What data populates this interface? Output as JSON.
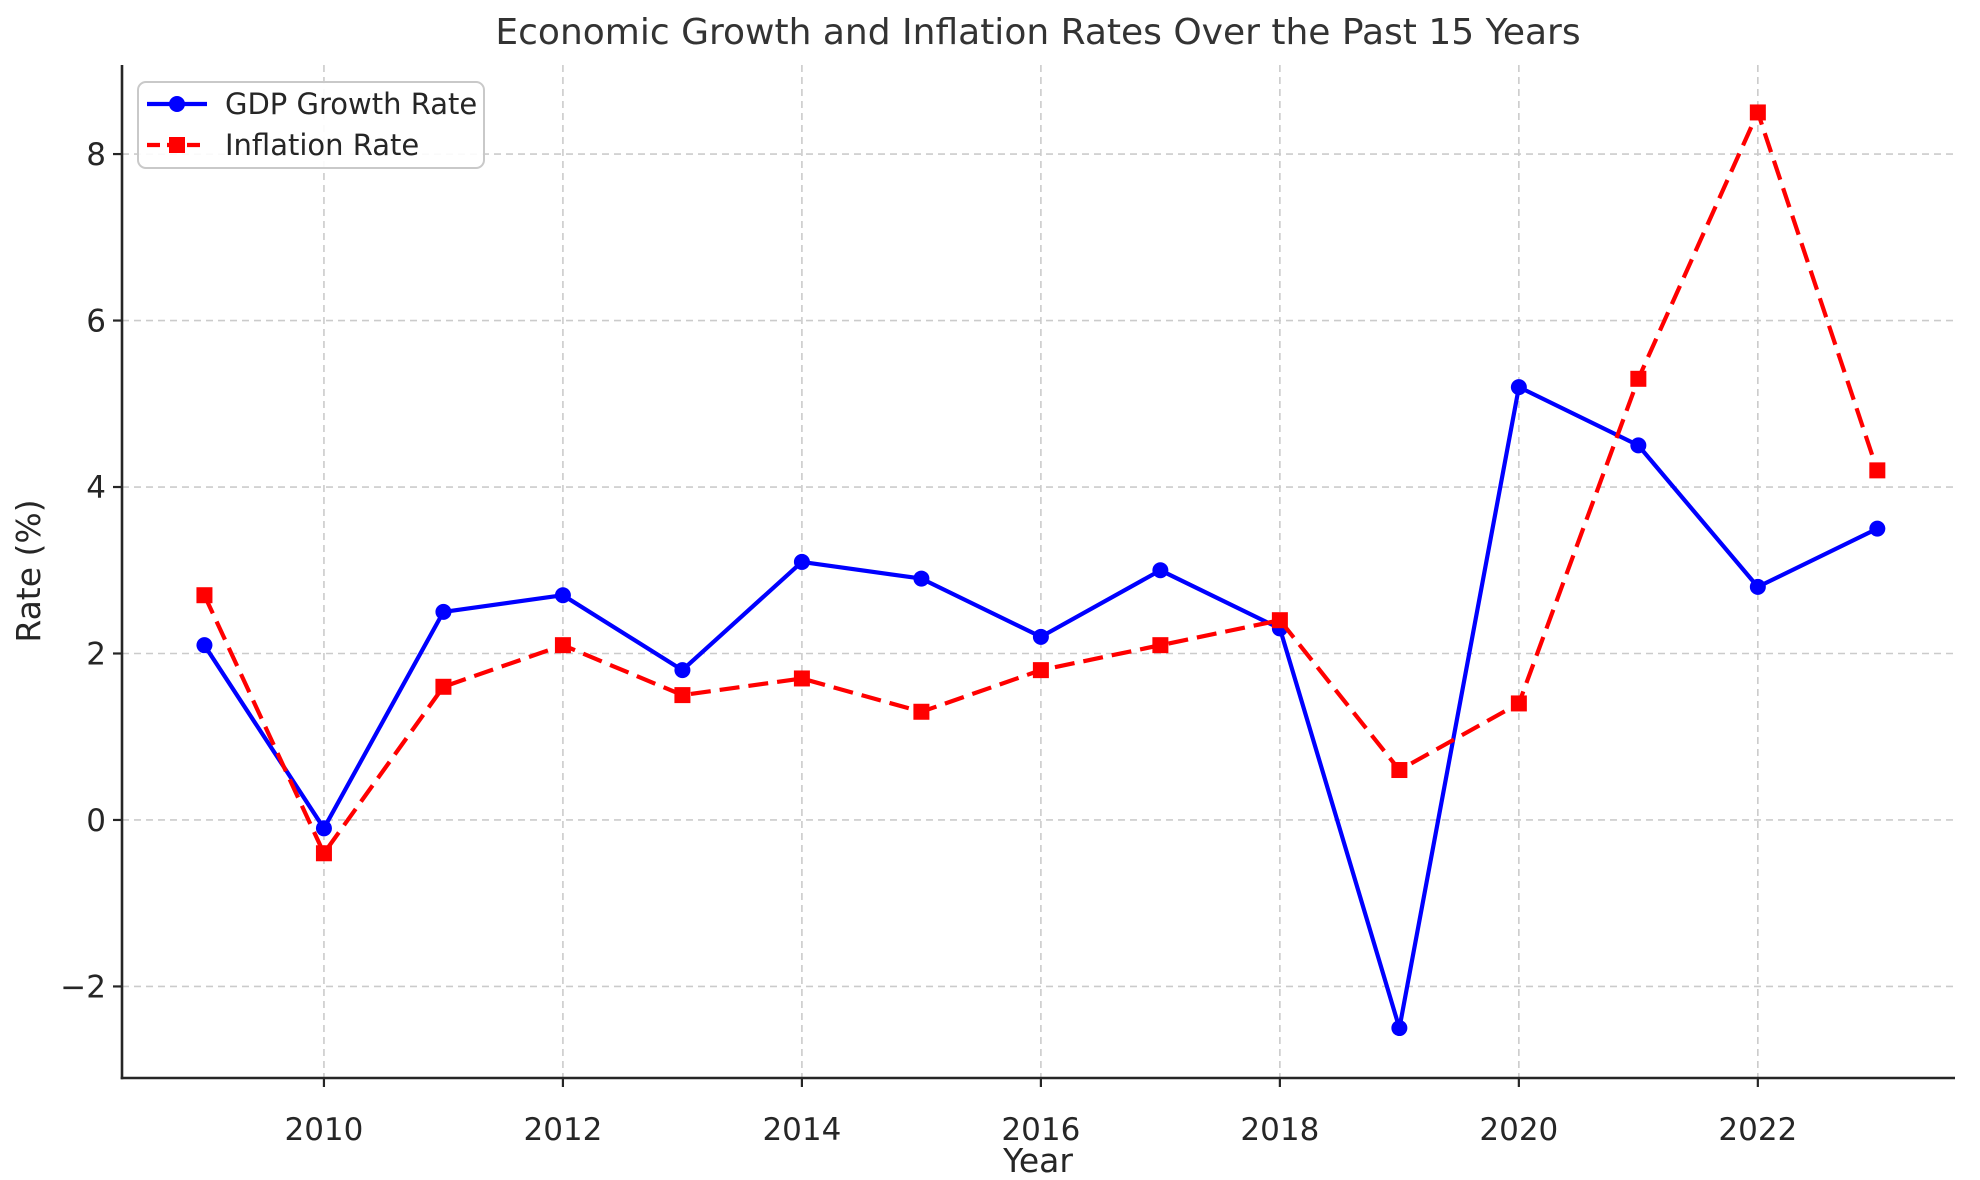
{
  "chart_data": {
    "type": "line",
    "title": "Economic Growth and Inflation Rates Over the Past 15 Years",
    "xlabel": "Year",
    "ylabel": "Rate (%)",
    "x": [
      2009,
      2010,
      2011,
      2012,
      2013,
      2014,
      2015,
      2016,
      2017,
      2018,
      2019,
      2020,
      2021,
      2022,
      2023
    ],
    "series": [
      {
        "name": "GDP Growth Rate",
        "color": "#0000ff",
        "line_style": "solid",
        "marker": "circle",
        "values": [
          2.1,
          -0.1,
          2.5,
          2.7,
          1.8,
          3.1,
          2.9,
          2.2,
          3.0,
          2.3,
          -2.5,
          5.2,
          4.5,
          2.8,
          3.5
        ]
      },
      {
        "name": "Inflation Rate",
        "color": "#ff0000",
        "line_style": "dashed",
        "marker": "square",
        "values": [
          2.7,
          -0.4,
          1.6,
          2.1,
          1.5,
          1.7,
          1.3,
          1.8,
          2.1,
          2.4,
          0.6,
          1.4,
          5.3,
          8.5,
          4.2
        ]
      }
    ],
    "xticks": [
      2010,
      2012,
      2014,
      2016,
      2018,
      2020,
      2022
    ],
    "yticks": [
      -2,
      0,
      2,
      4,
      6,
      8
    ],
    "xlim": [
      2008.31,
      2023.65
    ],
    "ylim": [
      -3.1,
      9.07
    ],
    "grid": true,
    "legend_position": "upper left"
  }
}
